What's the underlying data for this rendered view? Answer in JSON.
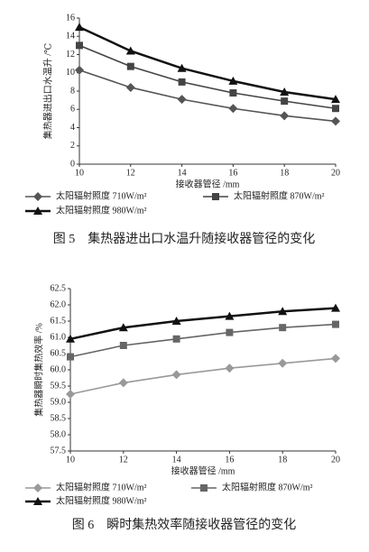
{
  "chart_data": [
    {
      "type": "line",
      "caption": "图 5　集热器进出口水温升随接收器管径的变化",
      "x_label": "接收器管径 /mm",
      "y_label": "集热器进出口水温升 /℃",
      "x": [
        10,
        12,
        14,
        16,
        18,
        20
      ],
      "xlim": [
        10,
        20
      ],
      "xticks": [
        10,
        12,
        14,
        16,
        18,
        20
      ],
      "ylim": [
        0,
        16
      ],
      "yticks": [
        0,
        2,
        4,
        6,
        8,
        10,
        12,
        14,
        16
      ],
      "series": [
        {
          "name": "太阳辐射照度 710W/m²",
          "color": "#555555",
          "marker": "diamond",
          "values": [
            10.3,
            8.4,
            7.1,
            6.1,
            5.3,
            4.7
          ]
        },
        {
          "name": "太阳辐射照度 870W/m²",
          "color": "#444444",
          "marker": "square",
          "values": [
            13.0,
            10.7,
            9.0,
            7.8,
            6.9,
            6.1
          ]
        },
        {
          "name": "太阳辐射照度 980W/m²",
          "color": "#111111",
          "marker": "triangle",
          "values": [
            15.0,
            12.4,
            10.5,
            9.1,
            7.9,
            7.1
          ]
        }
      ]
    },
    {
      "type": "line",
      "caption": "图 6　瞬时集热效率随接收器管径的变化",
      "x_label": "接收器管径 /mm",
      "y_label": "集热器瞬时集热效率 /%",
      "x": [
        10,
        12,
        14,
        16,
        18,
        20
      ],
      "xlim": [
        10,
        20
      ],
      "xticks": [
        10,
        12,
        14,
        16,
        18,
        20
      ],
      "ylim": [
        57.5,
        62.5
      ],
      "yticks": [
        57.5,
        {
          "value": 58,
          "label": "58.0"
        },
        58.5,
        {
          "value": 59,
          "label": "59.0"
        },
        59.5,
        {
          "value": 60,
          "label": "60.0"
        },
        60.5,
        {
          "value": 61,
          "label": "61.0"
        },
        61.5,
        {
          "value": 62,
          "label": "62.0"
        },
        62.5
      ],
      "series": [
        {
          "name": "太阳辐射照度 710W/m²",
          "color": "#999999",
          "marker": "diamond",
          "values": [
            59.25,
            59.6,
            59.85,
            60.05,
            60.2,
            60.35
          ]
        },
        {
          "name": "太阳辐射照度 870W/m²",
          "color": "#666666",
          "marker": "square",
          "values": [
            60.4,
            60.75,
            60.95,
            61.15,
            61.3,
            61.4
          ]
        },
        {
          "name": "太阳辐射照度 980W/m²",
          "color": "#111111",
          "marker": "triangle",
          "values": [
            60.95,
            61.3,
            61.5,
            61.65,
            61.8,
            61.9
          ]
        }
      ]
    }
  ]
}
